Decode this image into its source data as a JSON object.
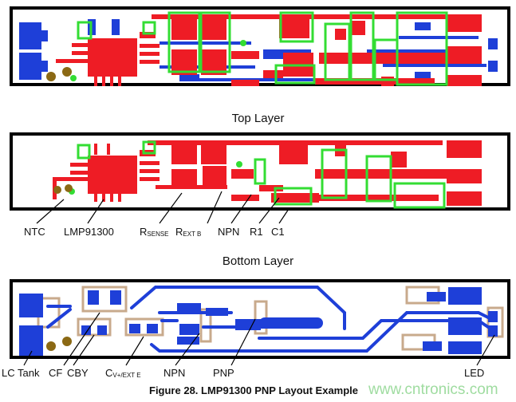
{
  "titles": {
    "top_layer": "Top Layer",
    "bottom_layer": "Bottom Layer"
  },
  "top_labels": {
    "ntc": "NTC",
    "lmp": "LMP91300",
    "rsense_main": "R",
    "rsense_sub": "SENSE",
    "rext_main": "R",
    "rext_sub": "EXT B",
    "npn": "NPN",
    "r1": "R1",
    "c1": "C1"
  },
  "bottom_labels": {
    "lc_tank": "LC Tank",
    "cf": "CF",
    "cby": "CBY",
    "cv_main": "C",
    "cv_sub": "V+/EXT E",
    "npn": "NPN",
    "pnp": "PNP",
    "led": "LED"
  },
  "caption": "Figure 28.  LMP91300 PNP Layout Example",
  "watermark": "www.cntronics.com",
  "colors": {
    "top_copper": "#ee1c25",
    "bottom_copper": "#1e3fd8",
    "silkscreen": "#33dd33",
    "outline": "#c8aa8c",
    "board_edge": "#000000"
  }
}
